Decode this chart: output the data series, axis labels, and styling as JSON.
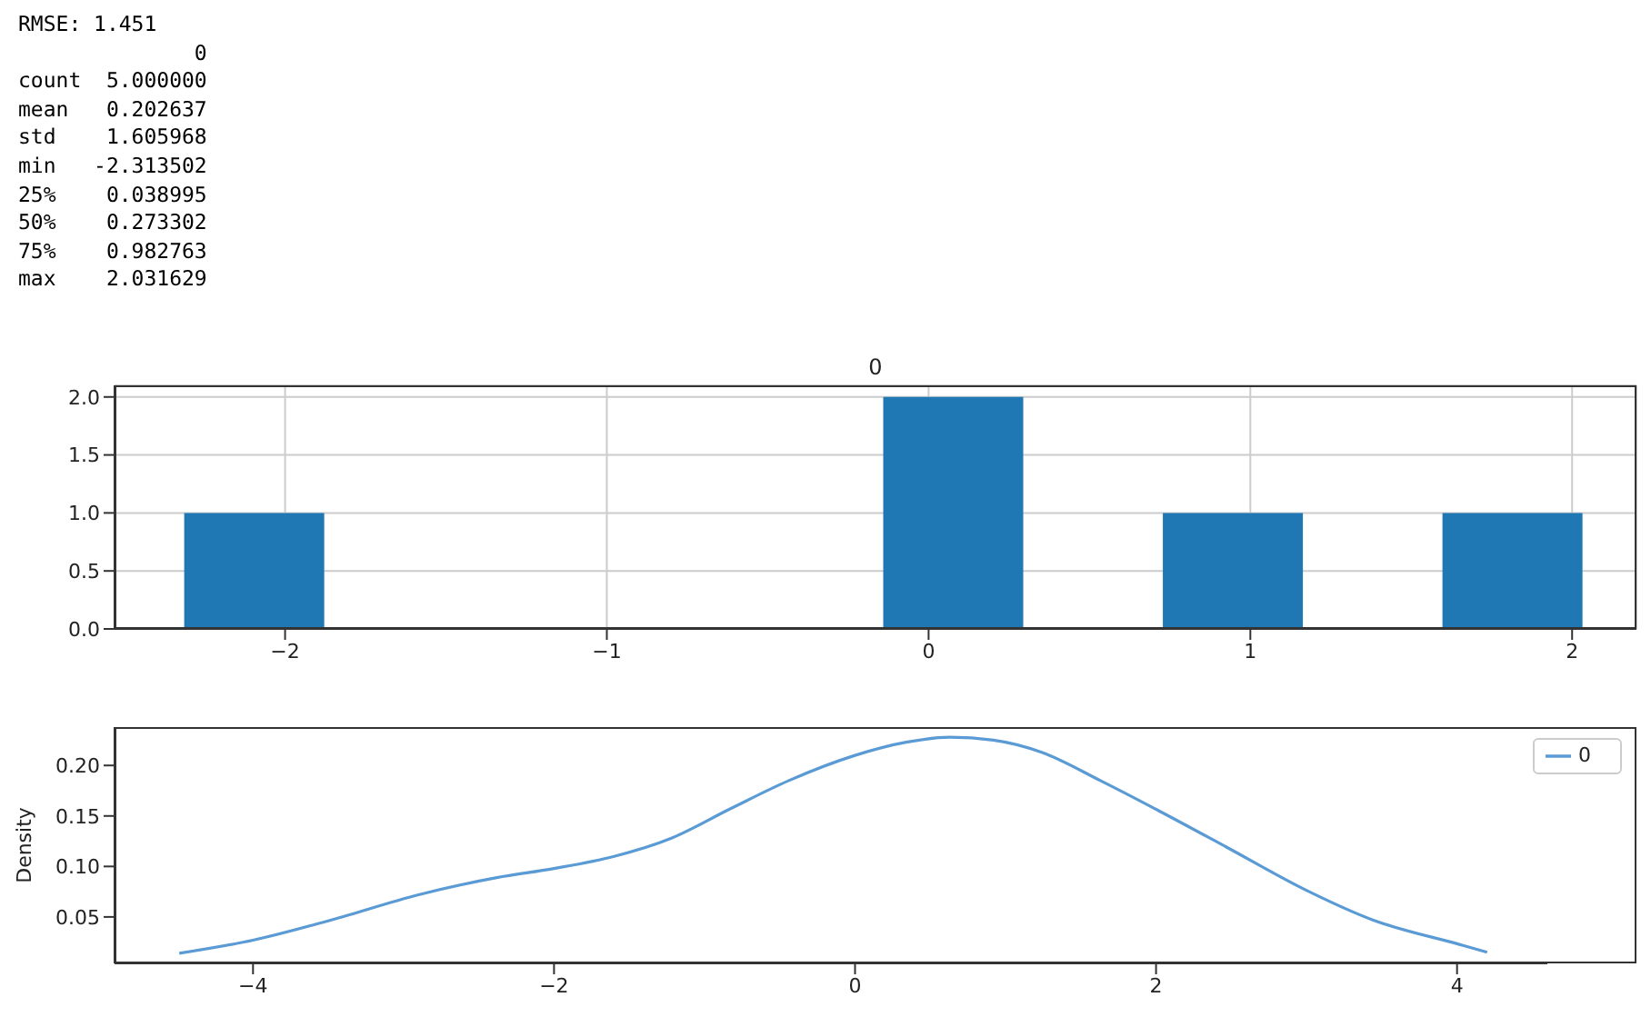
{
  "chart_data": [
    {
      "type": "other",
      "annotations": [
        "RMSE: 1.451",
        "              0",
        "count  5.000000",
        "mean   0.202637",
        "std    1.605968",
        "min   -2.313502",
        "25%    0.038995",
        "50%    0.273302",
        "75%    0.982763",
        "max    2.031629"
      ]
    },
    {
      "type": "histogram",
      "title": "0",
      "bins": [
        -2.3135,
        -1.879,
        -1.4445,
        -1.01,
        -0.5755,
        -0.141,
        0.2936,
        0.7281,
        1.1626,
        1.5971,
        2.0316
      ],
      "values": [
        1,
        0,
        0,
        0,
        0,
        2,
        0,
        1,
        0,
        1
      ],
      "color": "#1f77b4",
      "xlim": [
        -2.53,
        2.2
      ],
      "xticks": [
        {
          "value": -2,
          "label": "−2"
        },
        {
          "value": -1,
          "label": "−1"
        },
        0,
        1,
        2
      ],
      "ylim": [
        0,
        2.1
      ],
      "yticks": [
        {
          "value": 0,
          "label": "0.0"
        },
        {
          "value": 0.5,
          "label": "0.5"
        },
        {
          "value": 1,
          "label": "1.0"
        },
        {
          "value": 1.5,
          "label": "1.5"
        },
        {
          "value": 2,
          "label": "2.0"
        }
      ],
      "grid": true
    },
    {
      "type": "line",
      "ylabel": "Density",
      "x": [
        -4.49,
        -4.0,
        -3.48,
        -2.9,
        -2.38,
        -2.0,
        -1.6,
        -1.22,
        -0.83,
        -0.44,
        0,
        0.34,
        0.63,
        0.92,
        1.24,
        1.63,
        2.02,
        2.47,
        2.99,
        3.44,
        4.01,
        4.2
      ],
      "series": [
        {
          "name": "0",
          "color": "#5b9bd5",
          "values": [
            0.014,
            0.027,
            0.047,
            0.072,
            0.089,
            0.098,
            0.11,
            0.128,
            0.157,
            0.185,
            0.21,
            0.223,
            0.228,
            0.225,
            0.213,
            0.185,
            0.155,
            0.119,
            0.077,
            0.047,
            0.023,
            0.015
          ]
        }
      ],
      "xlim": [
        -4.92,
        4.6
      ],
      "xticks": [
        {
          "value": -4,
          "label": "−4"
        },
        {
          "value": -2,
          "label": "−2"
        },
        0,
        2,
        {
          "value": 4,
          "label": "4"
        }
      ],
      "ylim": [
        0.004,
        0.238
      ],
      "yticks": [
        {
          "value": 0.05,
          "label": "0.05"
        },
        {
          "value": 0.1,
          "label": "0.10"
        },
        {
          "value": 0.15,
          "label": "0.15"
        },
        {
          "value": 0.2,
          "label": "0.20"
        }
      ],
      "legend": "top right"
    }
  ]
}
